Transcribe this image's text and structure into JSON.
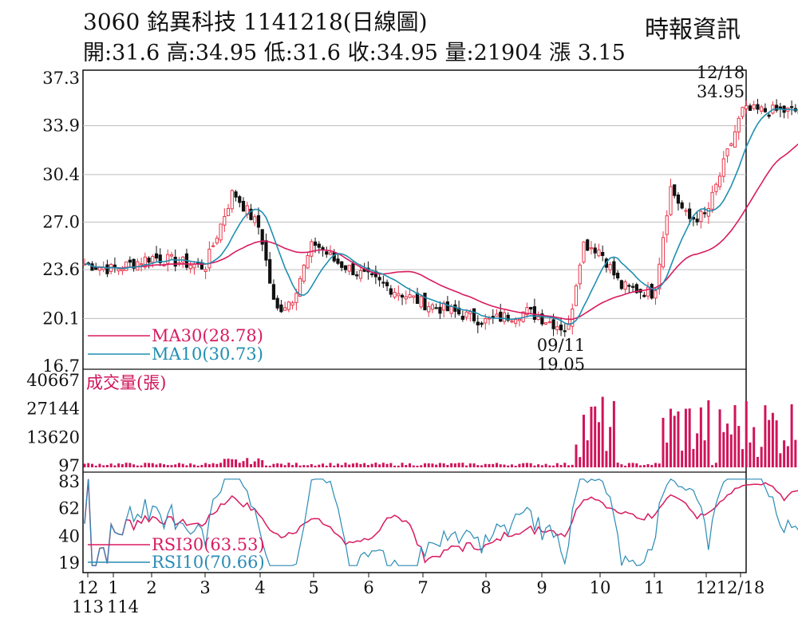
{
  "header": {
    "title": "3060  銘異科技 1141218(日線圖)",
    "ohlc": "開:31.6 高:34.95 低:31.6 收:34.95 量:21904 漲 3.15",
    "source": "時報資訊"
  },
  "colors": {
    "up": "#e8364a",
    "down": "#111111",
    "ma30": "#d81b60",
    "ma10": "#1f8fb0",
    "volume": "#d0145a",
    "rsi30": "#d81b60",
    "rsi10": "#2b8bb5",
    "grid": "#bdbdbd"
  },
  "chart_data": {
    "type": "candlestick",
    "price_panel": {
      "y_ticks": [
        "37.3",
        "33.9",
        "30.4",
        "27.0",
        "23.6",
        "20.1",
        "16.7"
      ],
      "ylim": [
        16.7,
        37.3
      ],
      "annotations": [
        {
          "date": "12/18",
          "value": "34.95",
          "label_date": "12/18",
          "label_value": "34.95"
        },
        {
          "date": "09/11",
          "value": "19.05",
          "label_date": "09/11",
          "label_value": "19.05"
        }
      ],
      "legend": [
        {
          "name": "MA30",
          "label": "MA30(28.78)"
        },
        {
          "name": "MA10",
          "label": "MA10(30.73)"
        }
      ],
      "month_anchors": [
        {
          "month": "12",
          "price": 24.0
        },
        {
          "month": "1",
          "price": 23.6
        },
        {
          "month": "2",
          "price": 24.5
        },
        {
          "month": "3",
          "price": 23.8
        },
        {
          "month": "3.5",
          "price": 29.2
        },
        {
          "month": "4",
          "price": 26.5
        },
        {
          "month": "4.2",
          "price": 20.6
        },
        {
          "month": "4.6",
          "price": 21.5
        },
        {
          "month": "5",
          "price": 25.6
        },
        {
          "month": "5.5",
          "price": 24.2
        },
        {
          "month": "6",
          "price": 23.0
        },
        {
          "month": "7",
          "price": 21.2
        },
        {
          "month": "8",
          "price": 19.9
        },
        {
          "month": "9",
          "price": 20.6
        },
        {
          "month": "9.4",
          "price": 19.3
        },
        {
          "month": "9.7",
          "price": 25.5
        },
        {
          "month": "10",
          "price": 25.0
        },
        {
          "month": "10.4",
          "price": 22.4
        },
        {
          "month": "11",
          "price": 21.9
        },
        {
          "month": "11.3",
          "price": 29.5
        },
        {
          "month": "11.6",
          "price": 27.2
        },
        {
          "month": "12",
          "price": 27.5
        },
        {
          "month": "12.18",
          "price": 34.95
        }
      ]
    },
    "volume_panel": {
      "label": "成交量(張)",
      "y_ticks": [
        "40667",
        "27144",
        "13620",
        "97"
      ],
      "ylim": [
        97,
        40667
      ]
    },
    "rsi_panel": {
      "y_ticks": [
        "83",
        "62",
        "40",
        "19"
      ],
      "ylim": [
        19,
        83
      ],
      "legend": [
        {
          "name": "RSI30",
          "label": "RSI30(63.53)"
        },
        {
          "name": "RSI10",
          "label": "RSI10(70.66)"
        }
      ]
    },
    "x_ticks": [
      {
        "label": "12",
        "sub": "113"
      },
      {
        "label": "1",
        "sub": "114"
      },
      {
        "label": "2",
        "sub": ""
      },
      {
        "label": "3",
        "sub": ""
      },
      {
        "label": "4",
        "sub": ""
      },
      {
        "label": "5",
        "sub": ""
      },
      {
        "label": "6",
        "sub": ""
      },
      {
        "label": "7",
        "sub": ""
      },
      {
        "label": "8",
        "sub": ""
      },
      {
        "label": "9",
        "sub": ""
      },
      {
        "label": "10",
        "sub": ""
      },
      {
        "label": "11",
        "sub": ""
      },
      {
        "label": "12",
        "sub": ""
      },
      {
        "label": "12/18",
        "sub": ""
      }
    ]
  }
}
